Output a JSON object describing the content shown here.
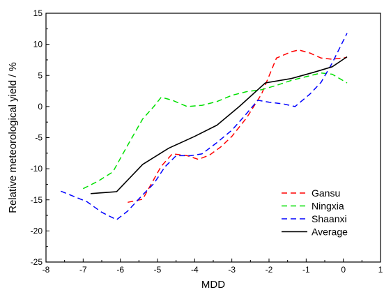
{
  "chart_data": {
    "type": "line",
    "xlabel": "MDD",
    "ylabel": "Relative meteorological yield / %",
    "xlim": [
      -8,
      1
    ],
    "ylim": [
      -25,
      15
    ],
    "x_ticks": [
      -8,
      -7,
      -6,
      -5,
      -4,
      -3,
      -2,
      -1,
      0,
      1
    ],
    "y_ticks": [
      -25,
      -20,
      -15,
      -10,
      -5,
      0,
      5,
      10,
      15
    ],
    "grid": false,
    "legend_position": "bottom-right",
    "series": [
      {
        "name": "Gansu",
        "color": "#ff0000",
        "dash": "dashed",
        "points": [
          [
            -5.8,
            -15.4
          ],
          [
            -5.4,
            -14.9
          ],
          [
            -5.2,
            -12.8
          ],
          [
            -4.9,
            -9.6
          ],
          [
            -4.6,
            -7.6
          ],
          [
            -4.2,
            -7.9
          ],
          [
            -3.9,
            -8.5
          ],
          [
            -3.6,
            -7.8
          ],
          [
            -3.3,
            -6.5
          ],
          [
            -3.0,
            -4.8
          ],
          [
            -2.6,
            -1.8
          ],
          [
            -2.2,
            2.0
          ],
          [
            -1.8,
            7.8
          ],
          [
            -1.4,
            8.8
          ],
          [
            -1.2,
            9.1
          ],
          [
            -0.9,
            8.6
          ],
          [
            -0.6,
            7.8
          ],
          [
            -0.3,
            7.6
          ],
          [
            0.1,
            7.9
          ]
        ]
      },
      {
        "name": "Ningxia",
        "color": "#00e000",
        "dash": "dashed",
        "points": [
          [
            -7.0,
            -13.2
          ],
          [
            -6.6,
            -12.0
          ],
          [
            -6.2,
            -10.5
          ],
          [
            -5.8,
            -6.2
          ],
          [
            -5.4,
            -2.0
          ],
          [
            -5.1,
            0.0
          ],
          [
            -4.9,
            1.5
          ],
          [
            -4.6,
            1.0
          ],
          [
            -4.2,
            0.0
          ],
          [
            -3.8,
            0.2
          ],
          [
            -3.4,
            0.8
          ],
          [
            -3.0,
            1.8
          ],
          [
            -2.6,
            2.4
          ],
          [
            -2.2,
            2.7
          ],
          [
            -1.8,
            3.4
          ],
          [
            -1.4,
            4.2
          ],
          [
            -1.0,
            4.8
          ],
          [
            -0.6,
            5.4
          ],
          [
            -0.3,
            5.2
          ],
          [
            0.1,
            3.8
          ]
        ]
      },
      {
        "name": "Shaanxi",
        "color": "#0000ff",
        "dash": "dashed",
        "points": [
          [
            -7.6,
            -13.6
          ],
          [
            -6.9,
            -15.3
          ],
          [
            -6.5,
            -17.0
          ],
          [
            -6.1,
            -18.2
          ],
          [
            -5.8,
            -16.8
          ],
          [
            -5.4,
            -14.2
          ],
          [
            -5.1,
            -12.4
          ],
          [
            -4.8,
            -9.7
          ],
          [
            -4.5,
            -7.9
          ],
          [
            -4.1,
            -7.9
          ],
          [
            -3.8,
            -7.6
          ],
          [
            -3.4,
            -5.8
          ],
          [
            -3.0,
            -3.8
          ],
          [
            -2.7,
            -1.8
          ],
          [
            -2.3,
            1.0
          ],
          [
            -2.0,
            0.7
          ],
          [
            -1.6,
            0.4
          ],
          [
            -1.3,
            0.0
          ],
          [
            -0.9,
            2.0
          ],
          [
            -0.6,
            3.9
          ],
          [
            -0.3,
            7.0
          ],
          [
            0.1,
            11.8
          ]
        ]
      },
      {
        "name": "Average",
        "color": "#000000",
        "dash": "solid",
        "points": [
          [
            -6.8,
            -14.0
          ],
          [
            -6.1,
            -13.7
          ],
          [
            -5.4,
            -9.3
          ],
          [
            -4.7,
            -6.7
          ],
          [
            -4.0,
            -4.8
          ],
          [
            -3.4,
            -3.0
          ],
          [
            -2.8,
            0.0
          ],
          [
            -2.1,
            3.8
          ],
          [
            -1.4,
            4.5
          ],
          [
            -0.8,
            5.5
          ],
          [
            -0.3,
            6.4
          ],
          [
            0.1,
            8.0
          ]
        ]
      }
    ]
  }
}
